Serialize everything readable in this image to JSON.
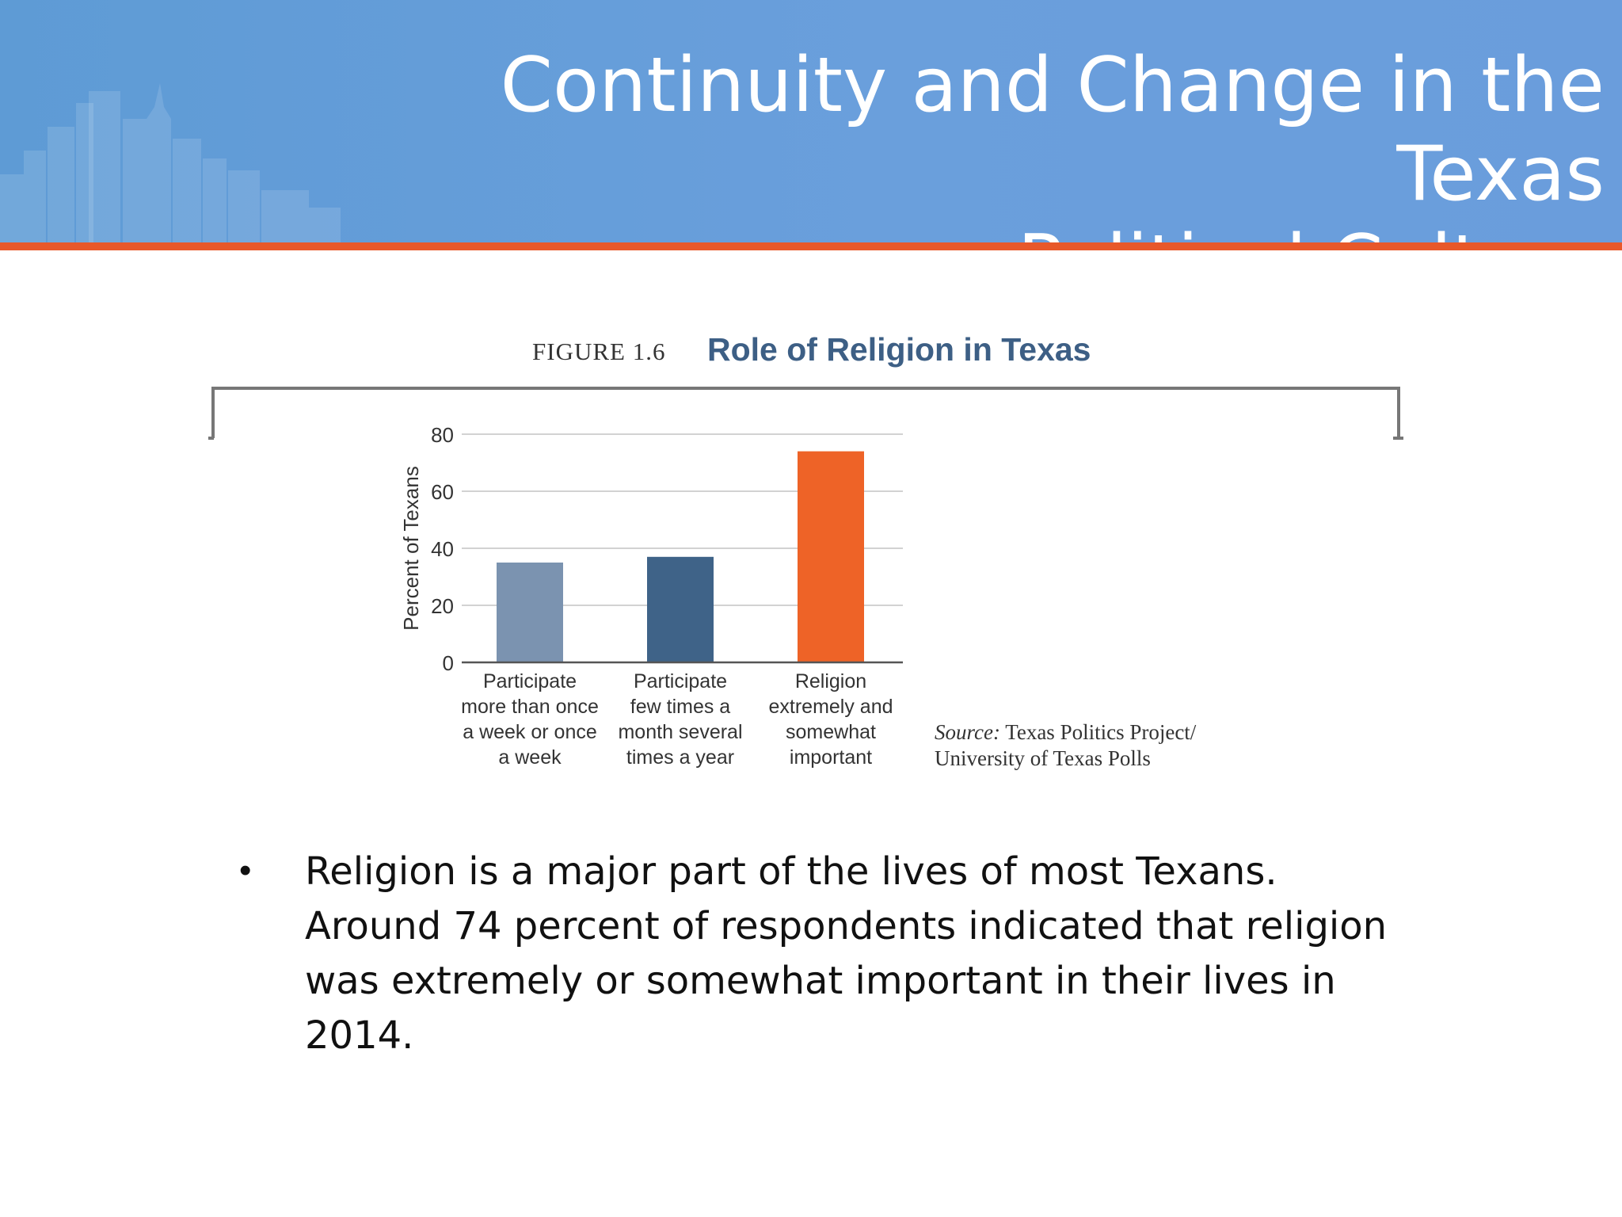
{
  "slide": {
    "title": "Continuity and Change in the Texas\nPolitical Culture",
    "bullet": "Religion is a major part of the lives of most Texans. Around 74 percent of respondents indicated that religion was extremely or somewhat important in their lives in 2014."
  },
  "figure": {
    "label": "FIGURE 1.6",
    "title": "Role of Religion in Texas",
    "source_label": "Source:",
    "source_text_line1": "Texas Politics Project/",
    "source_text_line2": "University of Texas Polls"
  },
  "chart_data": {
    "type": "bar",
    "title": "Role of Religion in Texas",
    "ylabel": "Percent of Texans",
    "xlabel": "",
    "ylim": [
      0,
      80
    ],
    "yticks": [
      0,
      20,
      40,
      60,
      80
    ],
    "grid": true,
    "categories": [
      [
        "Participate",
        "more than once",
        "a week or once",
        "a week"
      ],
      [
        "Participate",
        "few times a",
        "month several",
        "times a year"
      ],
      [
        "Religion",
        "extremely and",
        "somewhat",
        "important"
      ]
    ],
    "values": [
      35,
      37,
      74
    ],
    "bar_colors": [
      "#7b93b0",
      "#3f6388",
      "#ee6327"
    ]
  },
  "colors": {
    "header": "#6a9ddc",
    "header_rule": "#e8582a",
    "figure_title": "#3d5f85"
  }
}
